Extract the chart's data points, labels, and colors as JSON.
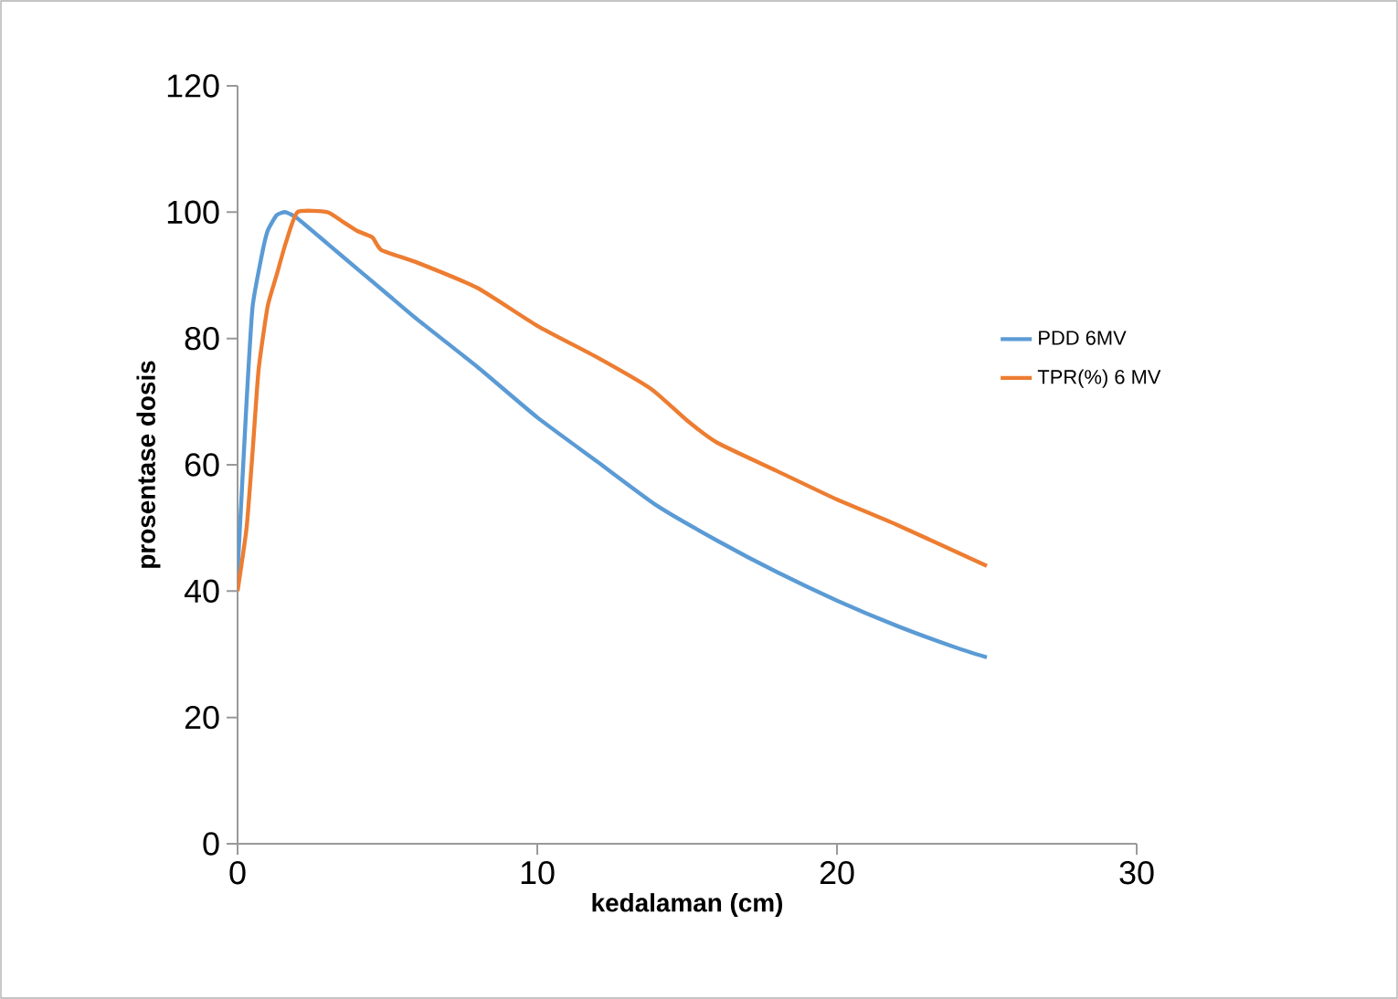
{
  "chart_data": {
    "type": "line",
    "xlabel": "kedalaman (cm)",
    "ylabel": "prosentase dosis",
    "xlim": [
      0,
      30
    ],
    "xticks": [
      0,
      10,
      20,
      30
    ],
    "ylim": [
      0,
      120
    ],
    "yticks": [
      0,
      20,
      40,
      60,
      80,
      100,
      120
    ],
    "grid": false,
    "legend": "right",
    "marker": "none",
    "line_style": "solid",
    "series": [
      {
        "name": "PDD 6MV",
        "color": "#5b9bd5",
        "x": [
          0,
          0.3,
          0.5,
          0.8,
          1,
          1.3,
          1.6,
          2,
          3,
          4,
          5,
          6,
          8,
          10,
          12,
          14,
          16,
          18,
          20,
          22,
          24,
          25
        ],
        "values": [
          43,
          70,
          85,
          93,
          97,
          99.5,
          100,
          99,
          95,
          91,
          87,
          83,
          75.5,
          67.5,
          60.5,
          53.5,
          48,
          43,
          38.5,
          34.5,
          31,
          29.5
        ]
      },
      {
        "name": "TPR(%) 6 MV",
        "color": "#ed7d31",
        "x": [
          0,
          0.3,
          0.5,
          0.7,
          1,
          1.3,
          1.6,
          2,
          3,
          3.5,
          4,
          4.5,
          4.8,
          6,
          8,
          10,
          12,
          13.8,
          15,
          16,
          18,
          20,
          22,
          25
        ],
        "values": [
          40,
          50,
          62,
          75,
          85,
          90,
          95,
          100,
          100,
          98.5,
          97,
          96,
          94,
          92,
          88,
          82,
          77,
          72,
          67,
          63.5,
          59,
          54.5,
          50.5,
          44
        ]
      }
    ]
  }
}
